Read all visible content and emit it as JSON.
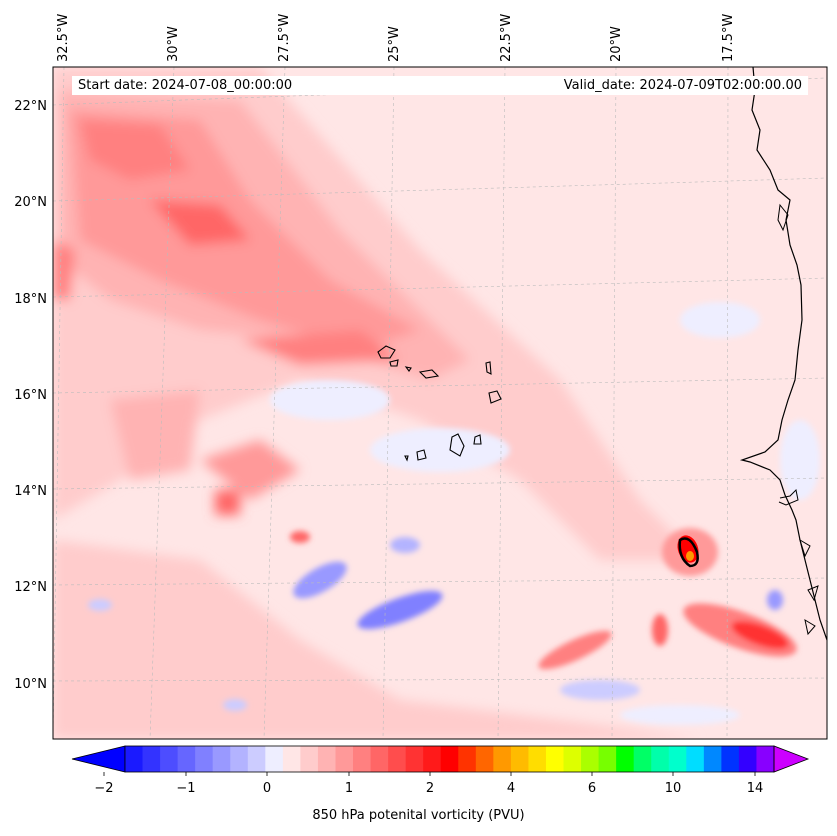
{
  "map": {
    "start_date": "Start date: 2024-07-08_00:00:00",
    "valid_date": "Valid_date: 2024-07-09T02:00:00.00",
    "lon_labels": [
      "32.5°W",
      "30°W",
      "27.5°W",
      "25°W",
      "22.5°W",
      "20°W",
      "17.5°W"
    ],
    "lat_labels": [
      "22°N",
      "20°N",
      "18°N",
      "16°N",
      "14°N",
      "12°N",
      "10°N"
    ],
    "background_color": "#ffe6e6",
    "coastline_color": "#000000",
    "gridline_color": "#bbbbbb"
  },
  "colorbar": {
    "label": "850 hPa potenital vorticity (PVU)",
    "tick_labels": [
      "−2",
      "−1",
      "0",
      "1",
      "2",
      "4",
      "6",
      "10",
      "14"
    ],
    "under_color": "#0000ff",
    "over_color": "#cc00ff",
    "colors": [
      "#1a1aff",
      "#3333ff",
      "#4d4dff",
      "#6666ff",
      "#8080ff",
      "#9999ff",
      "#b3b3ff",
      "#ccccff",
      "#eeeeff",
      "#ffe6e6",
      "#ffcccc",
      "#ffb3b3",
      "#ff9999",
      "#ff8080",
      "#ff6666",
      "#ff4d4d",
      "#ff3333",
      "#ff1a1a",
      "#ff0000",
      "#ff3300",
      "#ff6600",
      "#ff9900",
      "#ffbb00",
      "#ffdd00",
      "#ffff00",
      "#ddff00",
      "#aaff00",
      "#77ff00",
      "#00ff00",
      "#00ff66",
      "#00ffaa",
      "#00ffcc",
      "#00ddff",
      "#0088ff",
      "#0033ff",
      "#3300ff",
      "#8800ff"
    ]
  }
}
